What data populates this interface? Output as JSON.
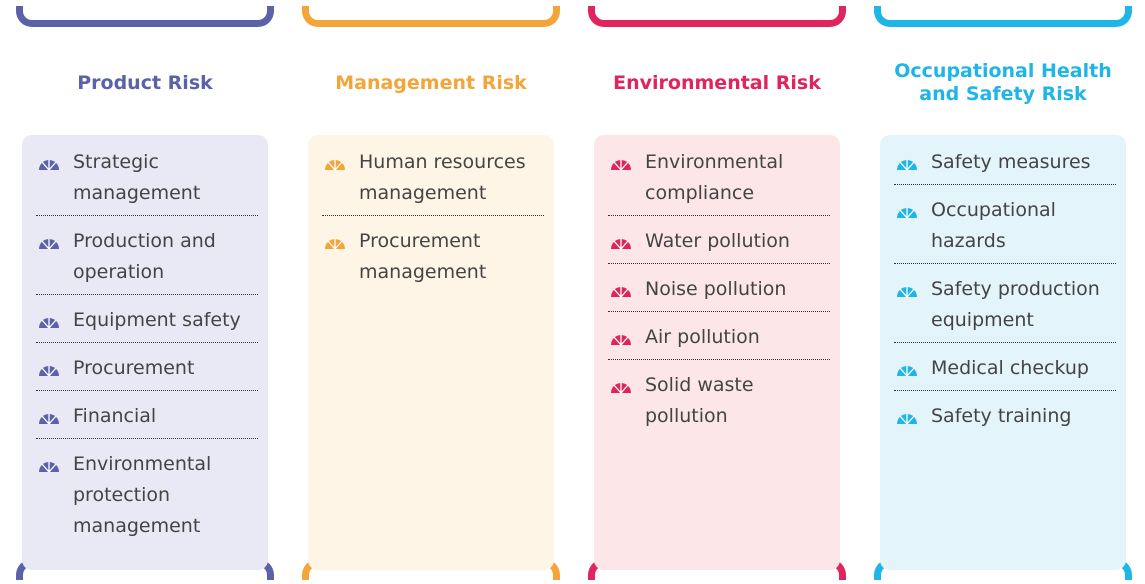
{
  "columns": [
    {
      "title": "Product Risk",
      "items": [
        "Strategic management",
        "Production and operation",
        "Equipment safety",
        "Procurement",
        "Financial",
        "Environmental protection management"
      ]
    },
    {
      "title": "Management Risk",
      "items": [
        "Human resources management",
        "Procurement management"
      ]
    },
    {
      "title": "Environmental Risk",
      "items": [
        "Environmental compliance",
        "Water pollution",
        "Noise pollution",
        "Air pollution",
        "Solid waste pollution"
      ]
    },
    {
      "title": "Occupational Health and Safety Risk",
      "items": [
        "Safety measures",
        "Occupational hazards",
        "Safety production equipment",
        "Medical checkup",
        "Safety training"
      ]
    }
  ]
}
